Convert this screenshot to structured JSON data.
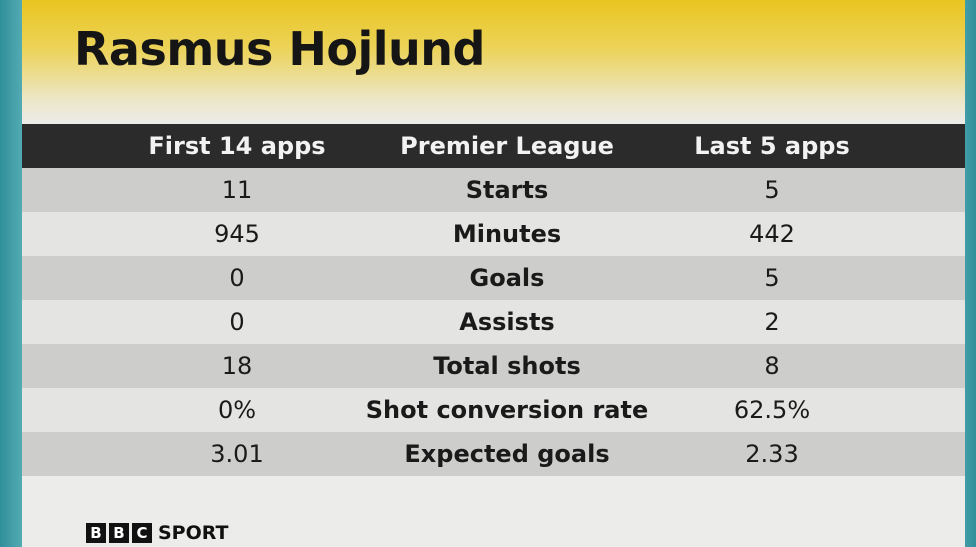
{
  "header": {
    "title": "Rasmus Hojlund"
  },
  "table": {
    "columns": [
      "First 14 apps",
      "Premier League",
      "Last 5 apps"
    ],
    "rows": [
      [
        "11",
        "Starts",
        "5"
      ],
      [
        "945",
        "Minutes",
        "442"
      ],
      [
        "0",
        "Goals",
        "5"
      ],
      [
        "0",
        "Assists",
        "2"
      ],
      [
        "18",
        "Total shots",
        "8"
      ],
      [
        "0%",
        "Shot conversion rate",
        "62.5%"
      ],
      [
        "3.01",
        "Expected goals",
        "2.33"
      ]
    ]
  },
  "footer": {
    "logo_letters": [
      "B",
      "B",
      "C"
    ],
    "brand": "SPORT"
  }
}
